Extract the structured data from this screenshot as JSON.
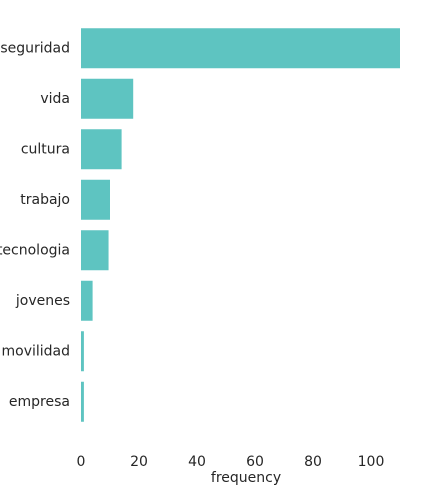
{
  "chart_data": {
    "type": "bar",
    "orientation": "horizontal",
    "categories": [
      "seguridad",
      "vida",
      "cultura",
      "trabajo",
      "tecnologia",
      "jovenes",
      "movilidad",
      "empresa"
    ],
    "values": [
      110,
      18,
      14,
      10,
      9.5,
      4,
      1,
      1
    ],
    "xlabel": "frequency",
    "ylabel": "",
    "xlim": [
      0,
      110
    ],
    "xticks": [
      0,
      20,
      40,
      60,
      80,
      100
    ],
    "grid": false,
    "colors": {
      "bar": "#5ec4c1",
      "text": "#262626",
      "background": "#ffffff"
    }
  }
}
